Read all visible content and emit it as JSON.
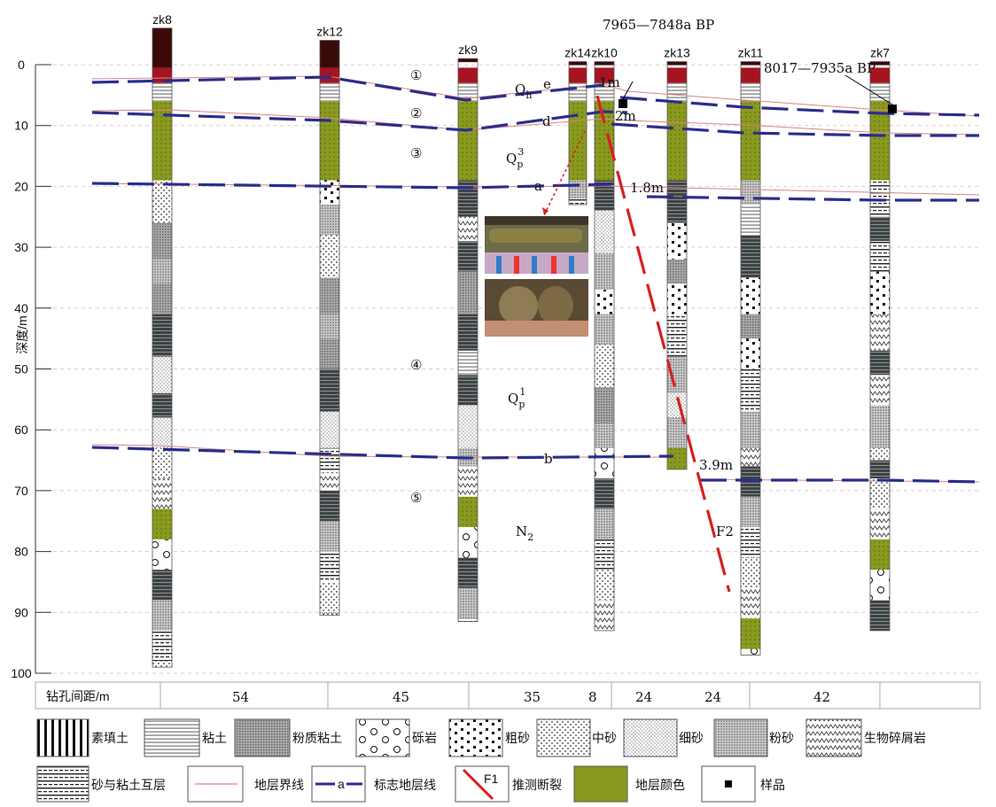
{
  "axis": {
    "label": "深度/m",
    "ticks": [
      "0",
      "10",
      "20",
      "30",
      "40",
      "50",
      "60",
      "70",
      "80",
      "90",
      "100"
    ],
    "tick_values": [
      0,
      10,
      20,
      30,
      40,
      50,
      60,
      70,
      80,
      90,
      100
    ],
    "range": [
      0,
      100
    ]
  },
  "boreholes": [
    {
      "name": "zk8",
      "top": -6,
      "bottom": 99
    },
    {
      "name": "zk12",
      "top": -4,
      "bottom": 90.5
    },
    {
      "name": "zk9",
      "top": -1,
      "bottom": 91.5
    },
    {
      "name": "zk14",
      "top": -0.5,
      "bottom": 23
    },
    {
      "name": "zk10",
      "top": -0.5,
      "bottom": 93
    },
    {
      "name": "zk13",
      "top": -0.5,
      "bottom": 66.5
    },
    {
      "name": "zk11",
      "top": -0.5,
      "bottom": 97
    },
    {
      "name": "zk7",
      "top": -0.5,
      "bottom": 93
    }
  ],
  "strata_numbers": [
    "①",
    "②",
    "③",
    "④",
    "⑤"
  ],
  "age_labels": {
    "qh": {
      "base": "Q",
      "sub": "h"
    },
    "qp3": {
      "base": "Q",
      "sub": "p",
      "sup": "3"
    },
    "qp1": {
      "base": "Q",
      "sub": "p",
      "sup": "1"
    },
    "n2": {
      "base": "N",
      "sub": "2"
    }
  },
  "marker_letters": [
    "e",
    "d",
    "a",
    "b"
  ],
  "offsets": [
    "1m",
    "2m",
    "1.8m",
    "3.9m"
  ],
  "fault_label": "F2",
  "dates": [
    "7965—7848a BP",
    "8017—7935a BP"
  ],
  "spacing": {
    "label": "钻孔间距/m",
    "values": [
      "54",
      "45",
      "35",
      "8",
      "24",
      "24",
      "42"
    ]
  },
  "legend": [
    {
      "id": "fill-soil",
      "label": "素填土"
    },
    {
      "id": "clay",
      "label": "粘土"
    },
    {
      "id": "silty-clay",
      "label": "粉质粘土"
    },
    {
      "id": "gravel",
      "label": "砾岩"
    },
    {
      "id": "coarse-sand",
      "label": "粗砂"
    },
    {
      "id": "medium-sand",
      "label": "中砂"
    },
    {
      "id": "fine-sand",
      "label": "细砂"
    },
    {
      "id": "silt-sand",
      "label": "粉砂"
    },
    {
      "id": "bioclastic",
      "label": "生物碎屑岩"
    },
    {
      "id": "interbed",
      "label": "砂与粘土互层"
    },
    {
      "id": "boundary",
      "label": "地层界线"
    },
    {
      "id": "marker",
      "label": "标志地层线",
      "sample_text": "a"
    },
    {
      "id": "fault",
      "label": "推测断裂",
      "sample_text": "F1"
    },
    {
      "id": "color",
      "label": "地层颜色"
    },
    {
      "id": "sample",
      "label": "样品"
    }
  ],
  "colors": {
    "marker_line": "#2b2e8c",
    "boundary": "#d98585",
    "fault": "#d62020",
    "olive": "#8a9a1e",
    "dark_red": "#5b0a12",
    "gray": "#6e7376"
  }
}
